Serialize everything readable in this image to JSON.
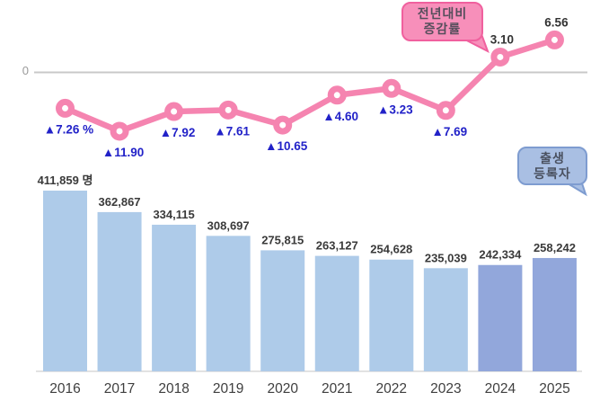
{
  "axis": {
    "zero_label": "0"
  },
  "callouts": {
    "rate": {
      "line1": "전년대비",
      "line2": "증감률",
      "fill": "#F78FBA",
      "border": "#F0609E",
      "text_color": "#564E5C"
    },
    "births": {
      "line1": "출생",
      "line2": "등록자",
      "fill": "#A9BFE3",
      "border": "#7E9CD0",
      "text_color": "#4A5160"
    }
  },
  "chart_data": [
    {
      "type": "line",
      "title": "전년대비 증감률",
      "categories": [
        "2016",
        "2017",
        "2018",
        "2019",
        "2020",
        "2021",
        "2022",
        "2023",
        "2024",
        "2025"
      ],
      "values": [
        -7.26,
        -11.9,
        -7.92,
        -7.61,
        -10.65,
        -4.6,
        -3.23,
        -7.69,
        3.1,
        6.56
      ],
      "labels": [
        "▲7.26 %",
        "▲11.90",
        "▲7.92",
        "▲7.61",
        "▲10.65",
        "▲4.60",
        "▲3.23",
        "▲7.69",
        "3.10",
        "6.56"
      ],
      "unit": "%",
      "ylabel": "",
      "xlabel": "",
      "axis_zero_label": "0",
      "legend_position": "top-center-callout",
      "grid": false,
      "line_color": "#F584B0",
      "marker_style": "ring",
      "negative_label_color": "#2222C8",
      "positive_label_color": "#333333",
      "zero_line_color": "#C8C8C8"
    },
    {
      "type": "bar",
      "title": "출생 등록자",
      "categories": [
        "2016",
        "2017",
        "2018",
        "2019",
        "2020",
        "2021",
        "2022",
        "2023",
        "2024",
        "2025"
      ],
      "values": [
        411859,
        362867,
        334115,
        308697,
        275815,
        263127,
        254628,
        235039,
        242334,
        258242
      ],
      "labels": [
        "411,859 명",
        "362,867",
        "334,115",
        "308,697",
        "275,815",
        "263,127",
        "254,628",
        "235,039",
        "242,334",
        "258,242"
      ],
      "unit": "명",
      "ylabel": "",
      "xlabel": "",
      "grid": false,
      "legend_position": "right-callout",
      "bar_color": "#AECBE9",
      "highlight_color": "#92A7DB",
      "highlight_categories": [
        "2024",
        "2025"
      ],
      "value_label_color": "#3A3A3A",
      "category_label_color": "#3F3F3F",
      "baseline_color": "#E2E2E2"
    }
  ]
}
